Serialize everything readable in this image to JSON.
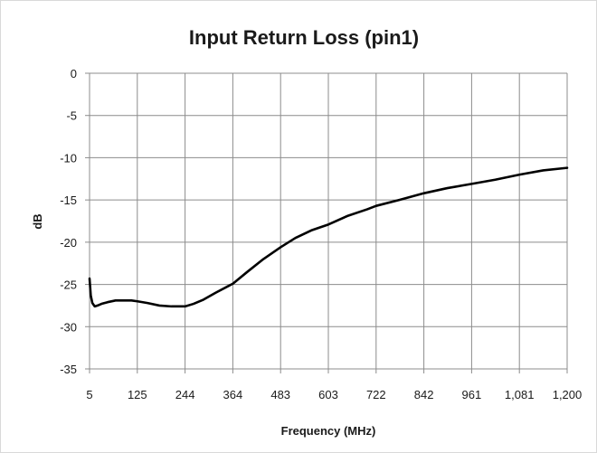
{
  "chart_data": {
    "type": "line",
    "title": "Input Return Loss (pin1)",
    "xlabel": "Frequency (MHz)",
    "ylabel": "dB",
    "x_tick_labels": [
      "5",
      "125",
      "244",
      "364",
      "483",
      "603",
      "722",
      "842",
      "961",
      "1,081",
      "1,200"
    ],
    "y_tick_labels": [
      "0",
      "-5",
      "-10",
      "-15",
      "-20",
      "-25",
      "-30",
      "-35"
    ],
    "xlim": [
      5,
      1200
    ],
    "ylim": [
      -35,
      0
    ],
    "grid": true,
    "legend": "none",
    "series": [
      {
        "color": "#000000",
        "x": [
          5,
          8,
          12,
          18,
          25,
          35,
          50,
          70,
          90,
          110,
          125,
          150,
          180,
          210,
          244,
          265,
          290,
          320,
          364,
          400,
          440,
          483,
          520,
          560,
          603,
          650,
          700,
          722,
          780,
          842,
          900,
          961,
          1020,
          1081,
          1140,
          1200
        ],
        "y": [
          -24.3,
          -26.3,
          -27.2,
          -27.6,
          -27.5,
          -27.3,
          -27.1,
          -26.9,
          -26.9,
          -26.9,
          -27.0,
          -27.2,
          -27.5,
          -27.6,
          -27.6,
          -27.3,
          -26.8,
          -26.0,
          -24.9,
          -23.5,
          -22.0,
          -20.6,
          -19.5,
          -18.6,
          -17.9,
          -16.9,
          -16.1,
          -15.7,
          -15.0,
          -14.2,
          -13.6,
          -13.1,
          -12.6,
          -12.0,
          -11.5,
          -11.2
        ]
      }
    ]
  }
}
